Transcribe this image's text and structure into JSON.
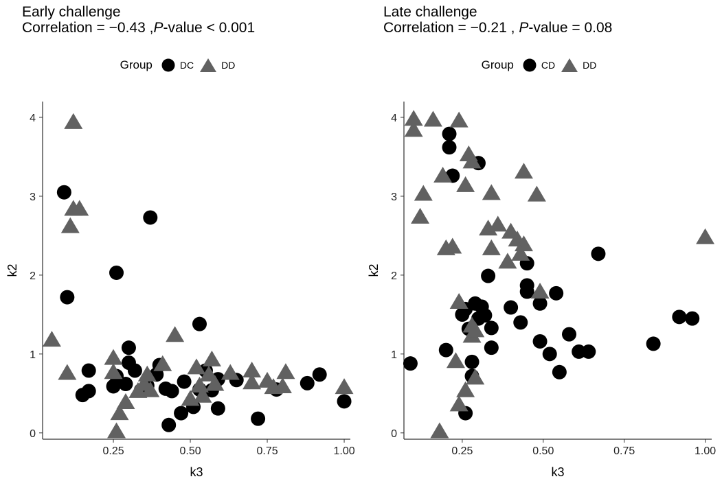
{
  "chart_data": [
    {
      "type": "scatter",
      "title": "Early challenge",
      "subtitle_prefix": "Correlation = ",
      "correlation": "−0.43",
      "subtitle_sep": " ,",
      "pvalue_p": "P",
      "pvalue_text": "-value < 0.001",
      "xlabel": "k3",
      "ylabel": "k2",
      "xlim": [
        0.02,
        1.02
      ],
      "ylim": [
        -0.08,
        4.2
      ],
      "xticks": [
        0.25,
        0.5,
        0.75,
        1.0
      ],
      "xtick_labels": [
        "0.25",
        "0.50",
        "0.75",
        "1.00"
      ],
      "yticks": [
        0,
        1,
        2,
        3,
        4
      ],
      "ytick_labels": [
        "0",
        "1",
        "2",
        "3",
        "4"
      ],
      "grid": false,
      "legend_position": "top",
      "legend_title": "Group",
      "series": [
        {
          "name": "DC",
          "marker": "circle",
          "color": "#000000",
          "points": [
            [
              0.09,
              3.05
            ],
            [
              0.1,
              1.72
            ],
            [
              0.26,
              2.03
            ],
            [
              0.37,
              2.73
            ],
            [
              0.53,
              1.38
            ],
            [
              0.15,
              0.48
            ],
            [
              0.17,
              0.79
            ],
            [
              0.17,
              0.53
            ],
            [
              0.25,
              0.59
            ],
            [
              0.26,
              0.72
            ],
            [
              0.29,
              0.62
            ],
            [
              0.3,
              0.89
            ],
            [
              0.3,
              1.08
            ],
            [
              0.32,
              0.79
            ],
            [
              0.34,
              0.54
            ],
            [
              0.36,
              0.6
            ],
            [
              0.39,
              0.74
            ],
            [
              0.4,
              0.86
            ],
            [
              0.42,
              0.56
            ],
            [
              0.43,
              0.1
            ],
            [
              0.44,
              0.53
            ],
            [
              0.47,
              0.25
            ],
            [
              0.48,
              0.65
            ],
            [
              0.51,
              0.33
            ],
            [
              0.53,
              0.55
            ],
            [
              0.55,
              0.79
            ],
            [
              0.57,
              0.54
            ],
            [
              0.59,
              0.68
            ],
            [
              0.59,
              0.31
            ],
            [
              0.65,
              0.67
            ],
            [
              0.72,
              0.18
            ],
            [
              0.78,
              0.55
            ],
            [
              0.88,
              0.63
            ],
            [
              0.92,
              0.74
            ],
            [
              1.0,
              0.4
            ]
          ]
        },
        {
          "name": "DD",
          "marker": "triangle",
          "color": "#616161",
          "points": [
            [
              0.12,
              3.94
            ],
            [
              0.12,
              2.84
            ],
            [
              0.14,
              2.84
            ],
            [
              0.11,
              2.62
            ],
            [
              0.05,
              1.18
            ],
            [
              0.1,
              0.76
            ],
            [
              0.25,
              0.95
            ],
            [
              0.25,
              0.77
            ],
            [
              0.27,
              0.25
            ],
            [
              0.26,
              0.02
            ],
            [
              0.29,
              0.39
            ],
            [
              0.33,
              0.53
            ],
            [
              0.35,
              0.62
            ],
            [
              0.36,
              0.74
            ],
            [
              0.37,
              0.54
            ],
            [
              0.41,
              0.87
            ],
            [
              0.45,
              1.24
            ],
            [
              0.5,
              0.43
            ],
            [
              0.52,
              0.83
            ],
            [
              0.53,
              0.6
            ],
            [
              0.54,
              0.47
            ],
            [
              0.56,
              0.74
            ],
            [
              0.57,
              0.93
            ],
            [
              0.58,
              0.62
            ],
            [
              0.63,
              0.76
            ],
            [
              0.7,
              0.64
            ],
            [
              0.7,
              0.79
            ],
            [
              0.75,
              0.66
            ],
            [
              0.77,
              0.58
            ],
            [
              0.8,
              0.59
            ],
            [
              0.81,
              0.77
            ],
            [
              1.0,
              0.58
            ]
          ]
        }
      ]
    },
    {
      "type": "scatter",
      "title": "Late challenge",
      "subtitle_prefix": "Correlation = ",
      "correlation": "−0.21",
      "subtitle_sep": " , ",
      "pvalue_p": "P",
      "pvalue_text": "-value = 0.08",
      "xlabel": "k3",
      "ylabel": "k2",
      "xlim": [
        0.07,
        1.02
      ],
      "ylim": [
        -0.08,
        4.2
      ],
      "xticks": [
        0.25,
        0.5,
        0.75,
        1.0
      ],
      "xtick_labels": [
        "0.25",
        "0.50",
        "0.75",
        "1.00"
      ],
      "yticks": [
        0,
        1,
        2,
        3,
        4
      ],
      "ytick_labels": [
        "0",
        "1",
        "2",
        "3",
        "4"
      ],
      "grid": false,
      "legend_position": "top",
      "legend_title": "Group",
      "series": [
        {
          "name": "CD",
          "marker": "circle",
          "color": "#000000",
          "points": [
            [
              0.21,
              3.79
            ],
            [
              0.21,
              3.62
            ],
            [
              0.22,
              3.26
            ],
            [
              0.3,
              3.42
            ],
            [
              0.09,
              0.88
            ],
            [
              0.2,
              1.05
            ],
            [
              0.25,
              1.5
            ],
            [
              0.26,
              1.57
            ],
            [
              0.26,
              0.25
            ],
            [
              0.27,
              1.32
            ],
            [
              0.28,
              0.9
            ],
            [
              0.28,
              0.72
            ],
            [
              0.29,
              1.64
            ],
            [
              0.3,
              1.45
            ],
            [
              0.31,
              1.6
            ],
            [
              0.32,
              1.49
            ],
            [
              0.33,
              1.99
            ],
            [
              0.34,
              1.33
            ],
            [
              0.34,
              1.08
            ],
            [
              0.4,
              1.59
            ],
            [
              0.43,
              1.4
            ],
            [
              0.45,
              2.15
            ],
            [
              0.45,
              1.87
            ],
            [
              0.45,
              1.79
            ],
            [
              0.49,
              1.64
            ],
            [
              0.49,
              1.16
            ],
            [
              0.52,
              1.0
            ],
            [
              0.54,
              1.77
            ],
            [
              0.55,
              0.77
            ],
            [
              0.58,
              1.25
            ],
            [
              0.61,
              1.03
            ],
            [
              0.64,
              1.03
            ],
            [
              0.67,
              2.27
            ],
            [
              0.84,
              1.13
            ],
            [
              0.92,
              1.47
            ],
            [
              0.96,
              1.45
            ]
          ]
        },
        {
          "name": "DD",
          "marker": "triangle",
          "color": "#616161",
          "points": [
            [
              0.1,
              3.98
            ],
            [
              0.1,
              3.84
            ],
            [
              0.16,
              3.97
            ],
            [
              0.24,
              3.96
            ],
            [
              0.27,
              3.53
            ],
            [
              0.28,
              3.44
            ],
            [
              0.19,
              3.26
            ],
            [
              0.26,
              3.14
            ],
            [
              0.13,
              3.03
            ],
            [
              0.12,
              2.74
            ],
            [
              0.34,
              3.04
            ],
            [
              0.44,
              3.31
            ],
            [
              0.48,
              3.02
            ],
            [
              0.33,
              2.59
            ],
            [
              0.36,
              2.64
            ],
            [
              0.4,
              2.55
            ],
            [
              0.42,
              2.45
            ],
            [
              0.44,
              2.39
            ],
            [
              0.34,
              2.34
            ],
            [
              0.2,
              2.34
            ],
            [
              0.22,
              2.36
            ],
            [
              0.39,
              2.17
            ],
            [
              0.43,
              2.27
            ],
            [
              0.49,
              1.79
            ],
            [
              0.24,
              1.66
            ],
            [
              0.28,
              1.36
            ],
            [
              0.28,
              1.23
            ],
            [
              0.29,
              1.3
            ],
            [
              0.23,
              0.91
            ],
            [
              0.26,
              0.54
            ],
            [
              0.29,
              0.7
            ],
            [
              0.24,
              0.36
            ],
            [
              0.18,
              0.02
            ],
            [
              1.0,
              2.48
            ]
          ]
        }
      ]
    }
  ]
}
